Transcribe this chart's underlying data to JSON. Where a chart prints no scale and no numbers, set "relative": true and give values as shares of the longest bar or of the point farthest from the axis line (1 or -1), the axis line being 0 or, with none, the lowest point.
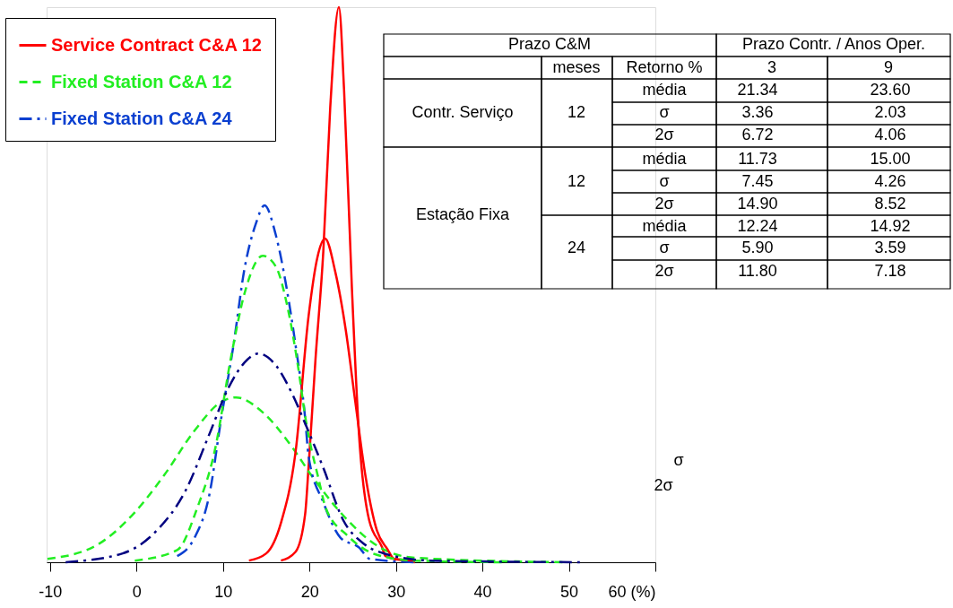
{
  "chart_data": {
    "type": "line",
    "relative": true,
    "legend": "top left",
    "grid": false,
    "xlim": [
      -10.4,
      60
    ],
    "xticks": [
      -10,
      0,
      10,
      20,
      30,
      40,
      50,
      {
        "value": 60,
        "label": "60 (%)"
      }
    ],
    "series": [
      {
        "name": "Service Contract C&A 12",
        "color": "#ff0000",
        "line_style": "solid",
        "x": [
          16.7,
          18.4,
          19.5,
          19.9,
          20.7,
          21.6,
          22.4,
          23.4,
          24.0,
          24.9,
          25.7,
          26.9,
          28.4,
          28.8,
          30.9,
          32.2
        ],
        "values": [
          0.003,
          0.019,
          0.087,
          0.173,
          0.367,
          0.56,
          0.819,
          1,
          0.851,
          0.496,
          0.237,
          0.076,
          0.027,
          0.011,
          0.003,
          0
        ]
      },
      {
        "color": "#ff0000",
        "line_style": "solid",
        "x": [
          13,
          15,
          16.7,
          18.4,
          19.9,
          20.9,
          21.8,
          23,
          24.2,
          25.3,
          26.5,
          27.8,
          29,
          29.8,
          32.2
        ],
        "values": [
          0.003,
          0.016,
          0.071,
          0.2,
          0.444,
          0.548,
          0.583,
          0.522,
          0.418,
          0.289,
          0.153,
          0.057,
          0.024,
          0.006,
          0.003
        ]
      },
      {
        "name": "Fixed Station C&A 12",
        "color": "#22ee22",
        "line_style": "dashed",
        "x": [
          -10.3,
          -4.7,
          -0.2,
          3.2,
          6.7,
          9.8,
          11.5,
          14.6,
          18.1,
          20.2,
          24.4,
          27.5,
          32.2,
          49.5
        ],
        "values": [
          0.006,
          0.03,
          0.09,
          0.157,
          0.237,
          0.289,
          0.297,
          0.27,
          0.205,
          0.157,
          0.076,
          0.033,
          0.008,
          0
        ]
      },
      {
        "color": "#22ee22",
        "line_style": "dashed",
        "x": [
          -0.2,
          4.7,
          7,
          9.1,
          10.9,
          12.5,
          14.6,
          16.1,
          17.4,
          18.8,
          19.5,
          21.1,
          21.9,
          24.4,
          27.5,
          32.2,
          42.6
        ],
        "values": [
          0.003,
          0.022,
          0.097,
          0.205,
          0.367,
          0.485,
          0.552,
          0.533,
          0.464,
          0.34,
          0.263,
          0.147,
          0.097,
          0.048,
          0.015,
          0.003,
          0
        ]
      },
      {
        "name": "Fixed Station C&A 24",
        "color": "#0a3fd0",
        "line_style": "dashdot",
        "x": [
          4.7,
          6.7,
          8.4,
          9.8,
          11.2,
          12.5,
          13.8,
          14.8,
          16.1,
          17.4,
          18.4,
          19.5,
          19.9,
          21.6,
          23.6,
          25.7,
          27,
          32.2
        ],
        "values": [
          0.011,
          0.044,
          0.12,
          0.26,
          0.39,
          0.53,
          0.61,
          0.643,
          0.59,
          0.49,
          0.39,
          0.26,
          0.19,
          0.108,
          0.044,
          0.027,
          0.006,
          0
        ]
      },
      {
        "color": "#000080",
        "line_style": "dashdot",
        "x": [
          -8.2,
          -1.6,
          2.2,
          5.7,
          8.4,
          10.5,
          12.5,
          14.1,
          16.1,
          18.1,
          19.5,
          21.6,
          23.9,
          26.4,
          28.8,
          34,
          51.3
        ],
        "values": [
          0,
          0.016,
          0.055,
          0.13,
          0.23,
          0.31,
          0.36,
          0.376,
          0.355,
          0.3,
          0.25,
          0.17,
          0.076,
          0.032,
          0.015,
          0.003,
          0
        ]
      }
    ],
    "annotations": [
      "Prazo C&M",
      "Prazo Contr. / Anos Oper.",
      "meses",
      "Retorno %",
      "3",
      "9",
      "Contr. Serviço",
      "12",
      "média",
      "21.34",
      "23.60",
      "σ",
      "3.36",
      "2.03",
      "2σ",
      "6.72",
      "4.06",
      "Estação Fixa",
      "12",
      "média",
      "11.73",
      "15.00",
      "σ",
      "7.45",
      "4.26",
      "2σ",
      "14.90",
      "8.52",
      "24",
      "média",
      "12.24",
      "14.92",
      "σ",
      "5.90",
      "3.59",
      "2σ",
      "11.80",
      "7.18",
      "σ",
      "2σ"
    ]
  }
}
